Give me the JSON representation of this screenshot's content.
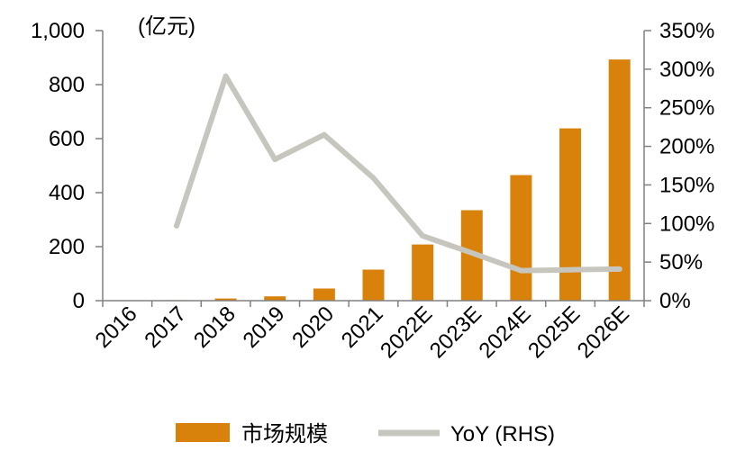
{
  "chart_data": {
    "type": "bar",
    "unit_label": "(亿元)",
    "categories": [
      "2016",
      "2017",
      "2018",
      "2019",
      "2020",
      "2021",
      "2022E",
      "2023E",
      "2024E",
      "2025E",
      "2026E"
    ],
    "left_axis": {
      "ylim": [
        0,
        1000
      ],
      "ticks": [
        0,
        200,
        400,
        600,
        800,
        1000
      ],
      "tick_labels": [
        "0",
        "200",
        "400",
        "600",
        "800",
        "1,000"
      ]
    },
    "right_axis": {
      "ylim": [
        0,
        350
      ],
      "ticks": [
        0,
        50,
        100,
        150,
        200,
        250,
        300,
        350
      ],
      "tick_labels": [
        "0%",
        "50%",
        "100%",
        "150%",
        "200%",
        "250%",
        "300%",
        "350%"
      ]
    },
    "series": [
      {
        "name": "市场规模",
        "type": "bar",
        "axis": "left",
        "color": "#D9820B",
        "values": [
          0.5,
          2,
          8,
          16,
          45,
          115,
          208,
          335,
          465,
          638,
          893
        ]
      },
      {
        "name": "YoY (RHS)",
        "type": "line",
        "axis": "right",
        "color": "#C6C6BE",
        "values": [
          null,
          97,
          291,
          183,
          215,
          159,
          84,
          62,
          39,
          40,
          41
        ]
      }
    ],
    "legend_position": "bottom",
    "grid": false
  }
}
